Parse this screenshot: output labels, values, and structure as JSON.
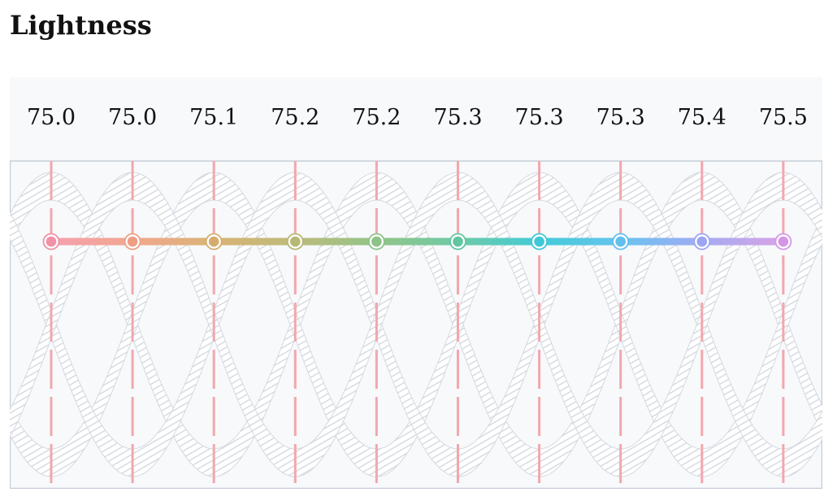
{
  "title": "Lightness",
  "chart_data": {
    "type": "line",
    "title": "Lightness",
    "x": [
      0,
      1,
      2,
      3,
      4,
      5,
      6,
      7,
      8,
      9
    ],
    "tick_labels": [
      "75.0",
      "75.0",
      "75.1",
      "75.2",
      "75.2",
      "75.3",
      "75.3",
      "75.3",
      "75.4",
      "75.5"
    ],
    "series": [
      {
        "values": [
          75.0,
          75.0,
          75.1,
          75.2,
          75.2,
          75.3,
          75.3,
          75.3,
          75.4,
          75.5
        ]
      }
    ],
    "point_colors": [
      "#f4a0b0",
      "#f3a78e",
      "#d9b376",
      "#bdbb7a",
      "#93c489",
      "#6ecaa6",
      "#44cbd6",
      "#68c3ee",
      "#a3abf2",
      "#d9a3e6"
    ],
    "marker_colors": [
      "#f190a6",
      "#ee9e84",
      "#d4ad6e",
      "#b6b875",
      "#8cc386",
      "#62c6a0",
      "#3fc7d8",
      "#62bfef",
      "#9aa5f3",
      "#d596e6"
    ],
    "grid": false,
    "legend": "none"
  }
}
